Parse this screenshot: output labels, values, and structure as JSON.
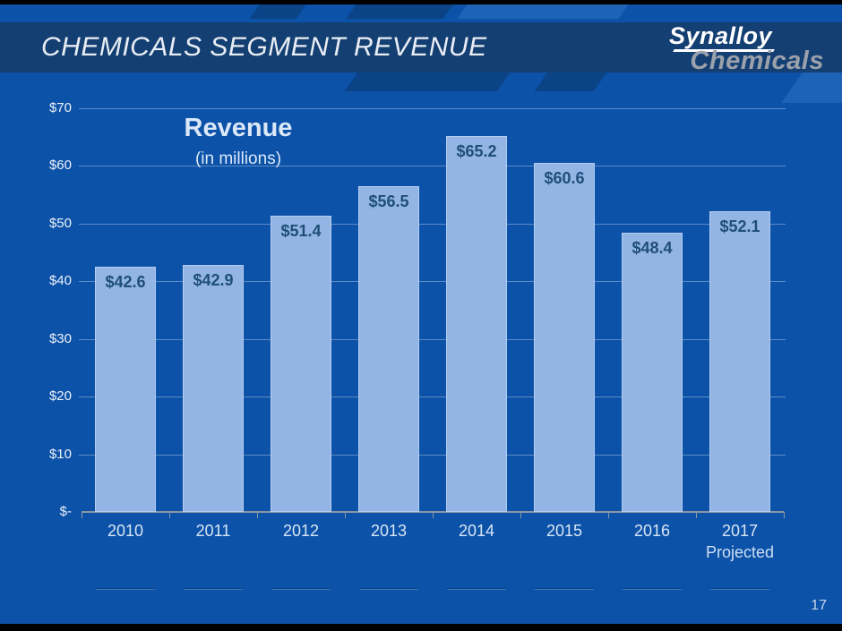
{
  "header": {
    "title": "CHEMICALS SEGMENT REVENUE"
  },
  "logo": {
    "name": "Synalloy",
    "division": "Chemicals"
  },
  "footer": {
    "page_number": "17"
  },
  "chart_data": {
    "type": "bar",
    "title": "Revenue",
    "subtitle": "(in millions)",
    "categories": [
      "2010",
      "2011",
      "2012",
      "2013",
      "2014",
      "2015",
      "2016",
      "2017"
    ],
    "category_notes": [
      "",
      "",
      "",
      "",
      "",
      "",
      "",
      "Projected"
    ],
    "values": [
      42.6,
      42.9,
      51.4,
      56.5,
      65.2,
      60.6,
      48.4,
      52.1
    ],
    "bar_labels": [
      "$42.6",
      "$42.9",
      "$51.4",
      "$56.5",
      "$65.2",
      "$60.6",
      "$48.4",
      "$52.1"
    ],
    "y_axis": {
      "min": 0,
      "max": 70,
      "ticks": [
        {
          "label": "$70",
          "value": 70
        },
        {
          "label": "$60",
          "value": 60
        },
        {
          "label": "$50",
          "value": 50
        },
        {
          "label": "$40",
          "value": 40
        },
        {
          "label": "$30",
          "value": 30
        },
        {
          "label": "$20",
          "value": 20
        },
        {
          "label": "$10",
          "value": 10
        },
        {
          "label": "$-",
          "value": 0
        }
      ]
    },
    "grid": true,
    "legend": "none",
    "colors": {
      "bar_fill": "#92b5e6",
      "bar_label": "#1f4e79",
      "gridline": "#6e87ab",
      "axis_line": "#8b95a3",
      "tick_label": "#edf2fa",
      "category_label": "#d9e6f6"
    }
  },
  "theme": {
    "slide_bg": "#0c52a8",
    "header_band": "#133f73",
    "frame_black": "#000000",
    "logo_name_color": "#ffffff",
    "logo_division_color": "#9ba1ab",
    "decor_dark": "#0a4386",
    "decor_light": "#1d63b6"
  }
}
